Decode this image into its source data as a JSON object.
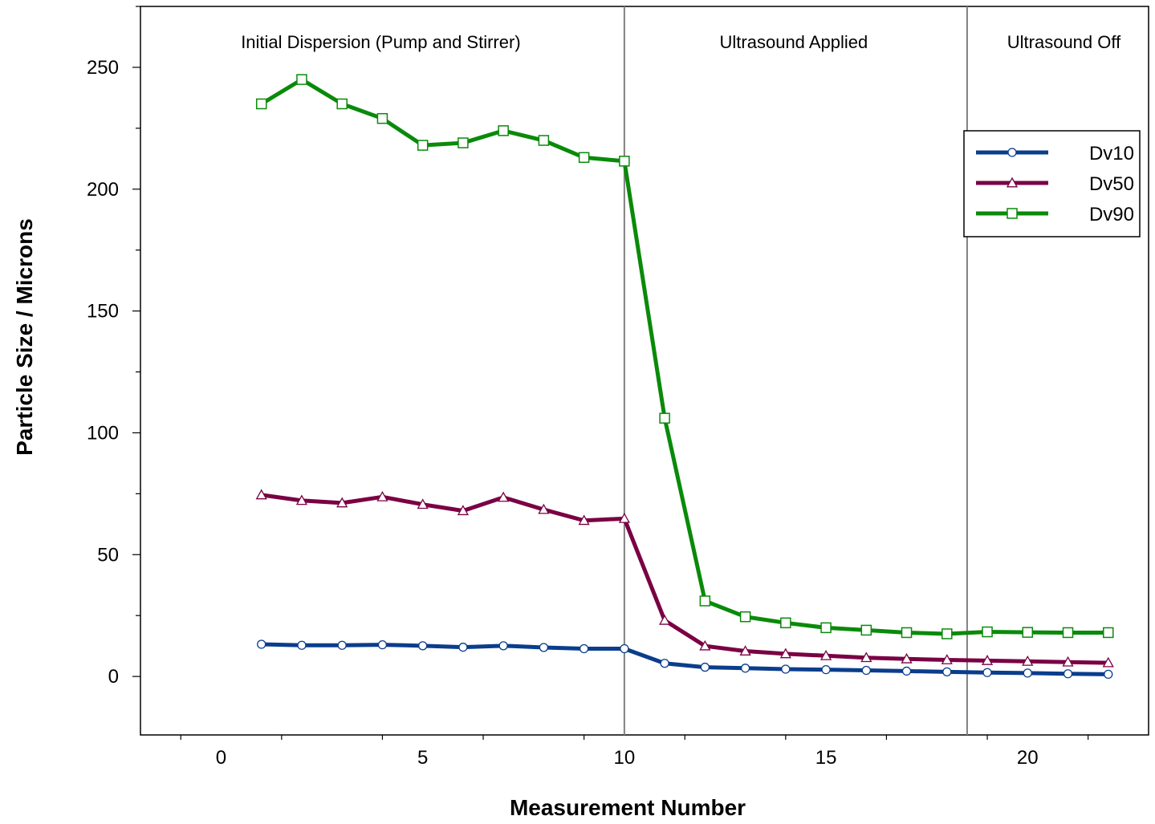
{
  "chart_data": {
    "type": "line",
    "xlabel": "Measurement Number",
    "ylabel": "Particle Size / Microns",
    "xlim": [
      -2,
      23
    ],
    "ylim": [
      -24,
      275
    ],
    "x_ticks": [
      0,
      5,
      10,
      15,
      20
    ],
    "y_ticks": [
      0,
      50,
      100,
      150,
      200,
      250
    ],
    "grid": false,
    "legend_position": "top-right",
    "region_dividers": [
      10,
      18.5
    ],
    "regions": [
      {
        "label": "Initial Dispersion (Pump and Stirrer)",
        "x_center": 3.96
      },
      {
        "label": "Ultrasound Applied",
        "x_center": 14.2
      },
      {
        "label": "Ultrasound Off",
        "x_center": 20.9
      }
    ],
    "x": [
      1,
      2,
      3,
      4,
      5,
      6,
      7,
      8,
      9,
      10,
      11,
      12,
      13,
      14,
      15,
      16,
      17,
      18,
      19,
      20,
      21,
      22
    ],
    "series": [
      {
        "name": "Dv10",
        "color": "#0b3d8c",
        "marker": "circle",
        "values": [
          13.2,
          12.8,
          12.8,
          13.0,
          12.6,
          12.0,
          12.6,
          11.9,
          11.4,
          11.4,
          5.4,
          3.8,
          3.4,
          3.0,
          2.8,
          2.5,
          2.2,
          1.9,
          1.6,
          1.4,
          1.1,
          0.9
        ]
      },
      {
        "name": "Dv50",
        "color": "#7a0044",
        "marker": "triangle",
        "values": [
          74.5,
          72.2,
          71.2,
          73.7,
          70.6,
          68.0,
          73.5,
          68.5,
          64.0,
          64.8,
          23.0,
          12.5,
          10.4,
          9.3,
          8.5,
          7.7,
          7.2,
          6.8,
          6.5,
          6.2,
          5.9,
          5.6
        ]
      },
      {
        "name": "Dv90",
        "color": "#0a8a0a",
        "marker": "square",
        "values": [
          235,
          245,
          235,
          229,
          218,
          219,
          224,
          220,
          213,
          211.5,
          106,
          31,
          24.5,
          22,
          20,
          19,
          18,
          17.5,
          18.3,
          18.1,
          18,
          18
        ]
      }
    ]
  }
}
